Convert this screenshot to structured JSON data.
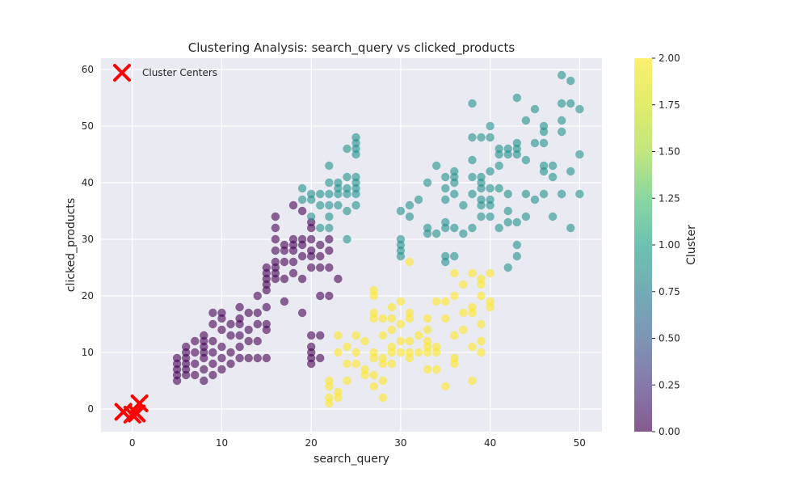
{
  "chart_data": {
    "type": "scatter",
    "title": "Clustering Analysis: search_query vs clicked_products",
    "xlabel": "search_query",
    "ylabel": "clicked_products",
    "xlim": [
      -3.5,
      52.5
    ],
    "ylim": [
      -4,
      62
    ],
    "xticks": [
      0,
      10,
      20,
      30,
      40,
      50
    ],
    "yticks": [
      0,
      10,
      20,
      30,
      40,
      50,
      60
    ],
    "grid": true,
    "legend": {
      "position": "top-left",
      "entries": [
        "Cluster Centers"
      ]
    },
    "colorbar": {
      "label": "Cluster",
      "range": [
        0,
        2
      ],
      "ticks": [
        "0.00",
        "0.25",
        "0.50",
        "0.75",
        "1.00",
        "1.25",
        "1.50",
        "1.75",
        "2.00"
      ],
      "colormap": "viridis",
      "alpha": 0.6
    },
    "colors": {
      "cluster_0": "#440154",
      "cluster_1": "#21918c",
      "cluster_2": "#fde725",
      "center": "#ff0000",
      "plot_background": "#eaeaf2"
    },
    "centers": [
      {
        "x": -1.0,
        "y": -0.5
      },
      {
        "x": 0.0,
        "y": -1.0
      },
      {
        "x": 0.5,
        "y": -0.8
      },
      {
        "x": 0.8,
        "y": 1.0
      }
    ],
    "series": [
      {
        "cluster": 0,
        "points": [
          [
            5,
            5
          ],
          [
            5,
            6
          ],
          [
            5,
            7
          ],
          [
            5,
            8
          ],
          [
            5,
            9
          ],
          [
            6,
            6
          ],
          [
            6,
            7
          ],
          [
            6,
            8
          ],
          [
            6,
            9
          ],
          [
            6,
            10
          ],
          [
            6,
            11
          ],
          [
            7,
            6
          ],
          [
            7,
            8
          ],
          [
            7,
            10
          ],
          [
            7,
            12
          ],
          [
            8,
            5
          ],
          [
            8,
            7
          ],
          [
            8,
            9
          ],
          [
            8,
            10
          ],
          [
            8,
            11
          ],
          [
            8,
            12
          ],
          [
            8,
            13
          ],
          [
            9,
            6
          ],
          [
            9,
            8
          ],
          [
            9,
            10
          ],
          [
            9,
            12
          ],
          [
            9,
            15
          ],
          [
            9,
            17
          ],
          [
            10,
            7
          ],
          [
            10,
            9
          ],
          [
            10,
            11
          ],
          [
            10,
            14
          ],
          [
            10,
            16
          ],
          [
            10,
            17
          ],
          [
            11,
            8
          ],
          [
            11,
            10
          ],
          [
            11,
            13
          ],
          [
            11,
            15
          ],
          [
            12,
            9
          ],
          [
            12,
            11
          ],
          [
            12,
            13
          ],
          [
            12,
            15
          ],
          [
            12,
            16
          ],
          [
            12,
            18
          ],
          [
            13,
            9
          ],
          [
            13,
            12
          ],
          [
            13,
            14
          ],
          [
            13,
            17
          ],
          [
            14,
            9
          ],
          [
            14,
            12
          ],
          [
            14,
            15
          ],
          [
            14,
            17
          ],
          [
            14,
            20
          ],
          [
            15,
            9
          ],
          [
            15,
            14
          ],
          [
            15,
            15
          ],
          [
            15,
            18
          ],
          [
            15,
            21
          ],
          [
            15,
            22
          ],
          [
            15,
            23
          ],
          [
            15,
            24
          ],
          [
            15,
            25
          ],
          [
            16,
            23
          ],
          [
            16,
            24
          ],
          [
            16,
            25
          ],
          [
            16,
            26
          ],
          [
            16,
            28
          ],
          [
            16,
            30
          ],
          [
            16,
            32
          ],
          [
            16,
            34
          ],
          [
            17,
            19
          ],
          [
            17,
            23
          ],
          [
            17,
            26
          ],
          [
            17,
            28
          ],
          [
            17,
            29
          ],
          [
            18,
            24
          ],
          [
            18,
            26
          ],
          [
            18,
            28
          ],
          [
            18,
            29
          ],
          [
            18,
            30
          ],
          [
            18,
            36
          ],
          [
            19,
            17
          ],
          [
            19,
            23
          ],
          [
            19,
            27
          ],
          [
            19,
            29
          ],
          [
            19,
            30
          ],
          [
            19,
            35
          ],
          [
            20,
            8
          ],
          [
            20,
            9
          ],
          [
            20,
            10
          ],
          [
            20,
            11
          ],
          [
            20,
            13
          ],
          [
            20,
            25
          ],
          [
            20,
            27
          ],
          [
            20,
            28
          ],
          [
            20,
            30
          ],
          [
            20,
            32
          ],
          [
            20,
            33
          ],
          [
            21,
            9
          ],
          [
            21,
            13
          ],
          [
            21,
            20
          ],
          [
            21,
            25
          ],
          [
            21,
            27
          ],
          [
            21,
            29
          ],
          [
            22,
            20
          ],
          [
            22,
            25
          ],
          [
            22,
            28
          ],
          [
            22,
            30
          ],
          [
            23,
            23
          ]
        ]
      },
      {
        "cluster": 1,
        "points": [
          [
            19,
            37
          ],
          [
            19,
            39
          ],
          [
            20,
            34
          ],
          [
            20,
            37
          ],
          [
            20,
            38
          ],
          [
            21,
            32
          ],
          [
            21,
            36
          ],
          [
            21,
            38
          ],
          [
            22,
            32
          ],
          [
            22,
            34
          ],
          [
            22,
            36
          ],
          [
            22,
            38
          ],
          [
            22,
            40
          ],
          [
            22,
            43
          ],
          [
            23,
            36
          ],
          [
            23,
            38
          ],
          [
            23,
            39
          ],
          [
            23,
            40
          ],
          [
            24,
            30
          ],
          [
            24,
            35
          ],
          [
            24,
            38
          ],
          [
            24,
            39
          ],
          [
            24,
            41
          ],
          [
            24,
            46
          ],
          [
            25,
            36
          ],
          [
            25,
            38
          ],
          [
            25,
            39
          ],
          [
            25,
            40
          ],
          [
            25,
            41
          ],
          [
            25,
            45
          ],
          [
            25,
            46
          ],
          [
            25,
            47
          ],
          [
            25,
            48
          ],
          [
            30,
            27
          ],
          [
            30,
            28
          ],
          [
            30,
            29
          ],
          [
            30,
            30
          ],
          [
            30,
            35
          ],
          [
            31,
            34
          ],
          [
            31,
            36
          ],
          [
            32,
            37
          ],
          [
            33,
            31
          ],
          [
            33,
            32
          ],
          [
            33,
            40
          ],
          [
            34,
            31
          ],
          [
            34,
            43
          ],
          [
            35,
            26
          ],
          [
            35,
            27
          ],
          [
            35,
            32
          ],
          [
            35,
            33
          ],
          [
            35,
            37
          ],
          [
            35,
            39
          ],
          [
            35,
            41
          ],
          [
            36,
            27
          ],
          [
            36,
            32
          ],
          [
            36,
            38
          ],
          [
            36,
            40
          ],
          [
            36,
            41
          ],
          [
            36,
            42
          ],
          [
            37,
            31
          ],
          [
            37,
            36
          ],
          [
            38,
            32
          ],
          [
            38,
            38
          ],
          [
            38,
            41
          ],
          [
            38,
            44
          ],
          [
            38,
            48
          ],
          [
            38,
            54
          ],
          [
            39,
            34
          ],
          [
            39,
            36
          ],
          [
            39,
            37
          ],
          [
            39,
            39
          ],
          [
            39,
            40
          ],
          [
            39,
            41
          ],
          [
            39,
            48
          ],
          [
            40,
            34
          ],
          [
            40,
            36
          ],
          [
            40,
            37
          ],
          [
            40,
            39
          ],
          [
            40,
            42
          ],
          [
            40,
            48
          ],
          [
            40,
            50
          ],
          [
            41,
            32
          ],
          [
            41,
            39
          ],
          [
            41,
            43
          ],
          [
            41,
            45
          ],
          [
            41,
            46
          ],
          [
            42,
            25
          ],
          [
            42,
            33
          ],
          [
            42,
            35
          ],
          [
            42,
            38
          ],
          [
            42,
            45
          ],
          [
            42,
            46
          ],
          [
            43,
            27
          ],
          [
            43,
            29
          ],
          [
            43,
            33
          ],
          [
            43,
            45
          ],
          [
            43,
            46
          ],
          [
            43,
            47
          ],
          [
            43,
            55
          ],
          [
            44,
            34
          ],
          [
            44,
            38
          ],
          [
            44,
            44
          ],
          [
            44,
            51
          ],
          [
            45,
            37
          ],
          [
            45,
            47
          ],
          [
            45,
            53
          ],
          [
            46,
            38
          ],
          [
            46,
            42
          ],
          [
            46,
            43
          ],
          [
            46,
            47
          ],
          [
            46,
            49
          ],
          [
            46,
            50
          ],
          [
            47,
            34
          ],
          [
            47,
            41
          ],
          [
            47,
            43
          ],
          [
            48,
            38
          ],
          [
            48,
            49
          ],
          [
            48,
            51
          ],
          [
            48,
            54
          ],
          [
            48,
            59
          ],
          [
            49,
            32
          ],
          [
            49,
            42
          ],
          [
            49,
            54
          ],
          [
            49,
            58
          ],
          [
            50,
            38
          ],
          [
            50,
            45
          ],
          [
            50,
            53
          ]
        ]
      },
      {
        "cluster": 2,
        "points": [
          [
            22,
            1
          ],
          [
            22,
            2
          ],
          [
            22,
            4
          ],
          [
            22,
            5
          ],
          [
            23,
            2
          ],
          [
            23,
            3
          ],
          [
            23,
            10
          ],
          [
            23,
            13
          ],
          [
            24,
            5
          ],
          [
            24,
            8
          ],
          [
            24,
            11
          ],
          [
            25,
            8
          ],
          [
            25,
            10
          ],
          [
            25,
            13
          ],
          [
            26,
            6
          ],
          [
            26,
            7
          ],
          [
            26,
            12
          ],
          [
            27,
            4
          ],
          [
            27,
            6
          ],
          [
            27,
            9
          ],
          [
            27,
            10
          ],
          [
            27,
            16
          ],
          [
            27,
            17
          ],
          [
            27,
            20
          ],
          [
            27,
            21
          ],
          [
            28,
            2
          ],
          [
            28,
            5
          ],
          [
            28,
            8
          ],
          [
            28,
            9
          ],
          [
            28,
            13
          ],
          [
            28,
            16
          ],
          [
            29,
            8
          ],
          [
            29,
            10
          ],
          [
            29,
            11
          ],
          [
            29,
            14
          ],
          [
            29,
            16
          ],
          [
            29,
            18
          ],
          [
            30,
            10
          ],
          [
            30,
            12
          ],
          [
            30,
            15
          ],
          [
            30,
            19
          ],
          [
            31,
            9
          ],
          [
            31,
            10
          ],
          [
            31,
            12
          ],
          [
            31,
            16
          ],
          [
            31,
            17
          ],
          [
            31,
            26
          ],
          [
            32,
            10
          ],
          [
            32,
            13
          ],
          [
            33,
            7
          ],
          [
            33,
            10
          ],
          [
            33,
            11
          ],
          [
            33,
            12
          ],
          [
            33,
            14
          ],
          [
            33,
            16
          ],
          [
            34,
            7
          ],
          [
            34,
            10
          ],
          [
            34,
            11
          ],
          [
            34,
            19
          ],
          [
            35,
            4
          ],
          [
            35,
            16
          ],
          [
            35,
            19
          ],
          [
            36,
            8
          ],
          [
            36,
            9
          ],
          [
            36,
            13
          ],
          [
            36,
            20
          ],
          [
            36,
            24
          ],
          [
            37,
            14
          ],
          [
            37,
            17
          ],
          [
            37,
            22
          ],
          [
            38,
            5
          ],
          [
            38,
            11
          ],
          [
            38,
            17
          ],
          [
            38,
            18
          ],
          [
            38,
            24
          ],
          [
            39,
            10
          ],
          [
            39,
            12
          ],
          [
            39,
            15
          ],
          [
            39,
            20
          ],
          [
            39,
            22
          ],
          [
            39,
            23
          ],
          [
            40,
            18
          ],
          [
            40,
            19
          ],
          [
            40,
            24
          ]
        ]
      }
    ]
  }
}
